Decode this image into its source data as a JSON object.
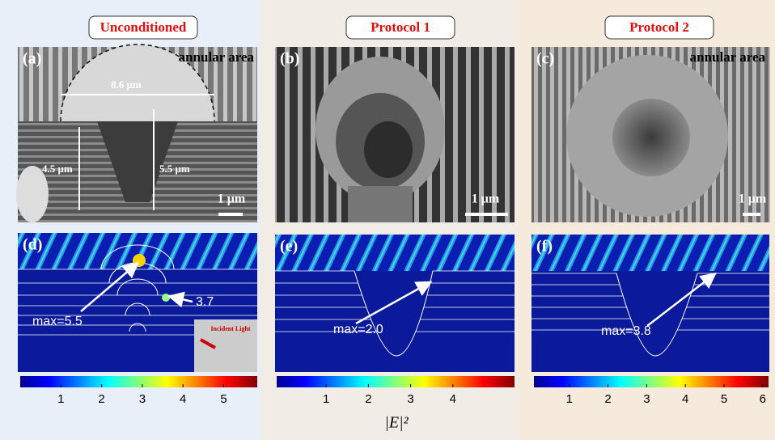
{
  "headers": [
    "Unconditioned",
    "Protocol 1",
    "Protocol 2"
  ],
  "panels": {
    "a": {
      "label": "(a)",
      "note": "annular area",
      "width": "8.6 μm",
      "depth_left": "4.5 μm",
      "depth_right": "5.5 μm",
      "scale_bar": "1 μm"
    },
    "b": {
      "label": "(b)",
      "scale_bar": "1 μm"
    },
    "c": {
      "label": "(c)",
      "note": "annular area",
      "scale_bar": "1 μm"
    },
    "d": {
      "label": "(d)",
      "max": "max=5.5",
      "secondary": "3.7",
      "inset": "Incident Light",
      "colorbar_ticks": [
        1,
        2,
        3,
        4,
        5
      ]
    },
    "e": {
      "label": "(e)",
      "max": "max=2.0",
      "colorbar_ticks": [
        1,
        2,
        3,
        4
      ]
    },
    "f": {
      "label": "(f)",
      "max": "max=3.8",
      "colorbar_ticks": [
        1,
        2,
        3,
        4,
        5,
        6
      ]
    }
  },
  "colorbar_label": "|E|²"
}
